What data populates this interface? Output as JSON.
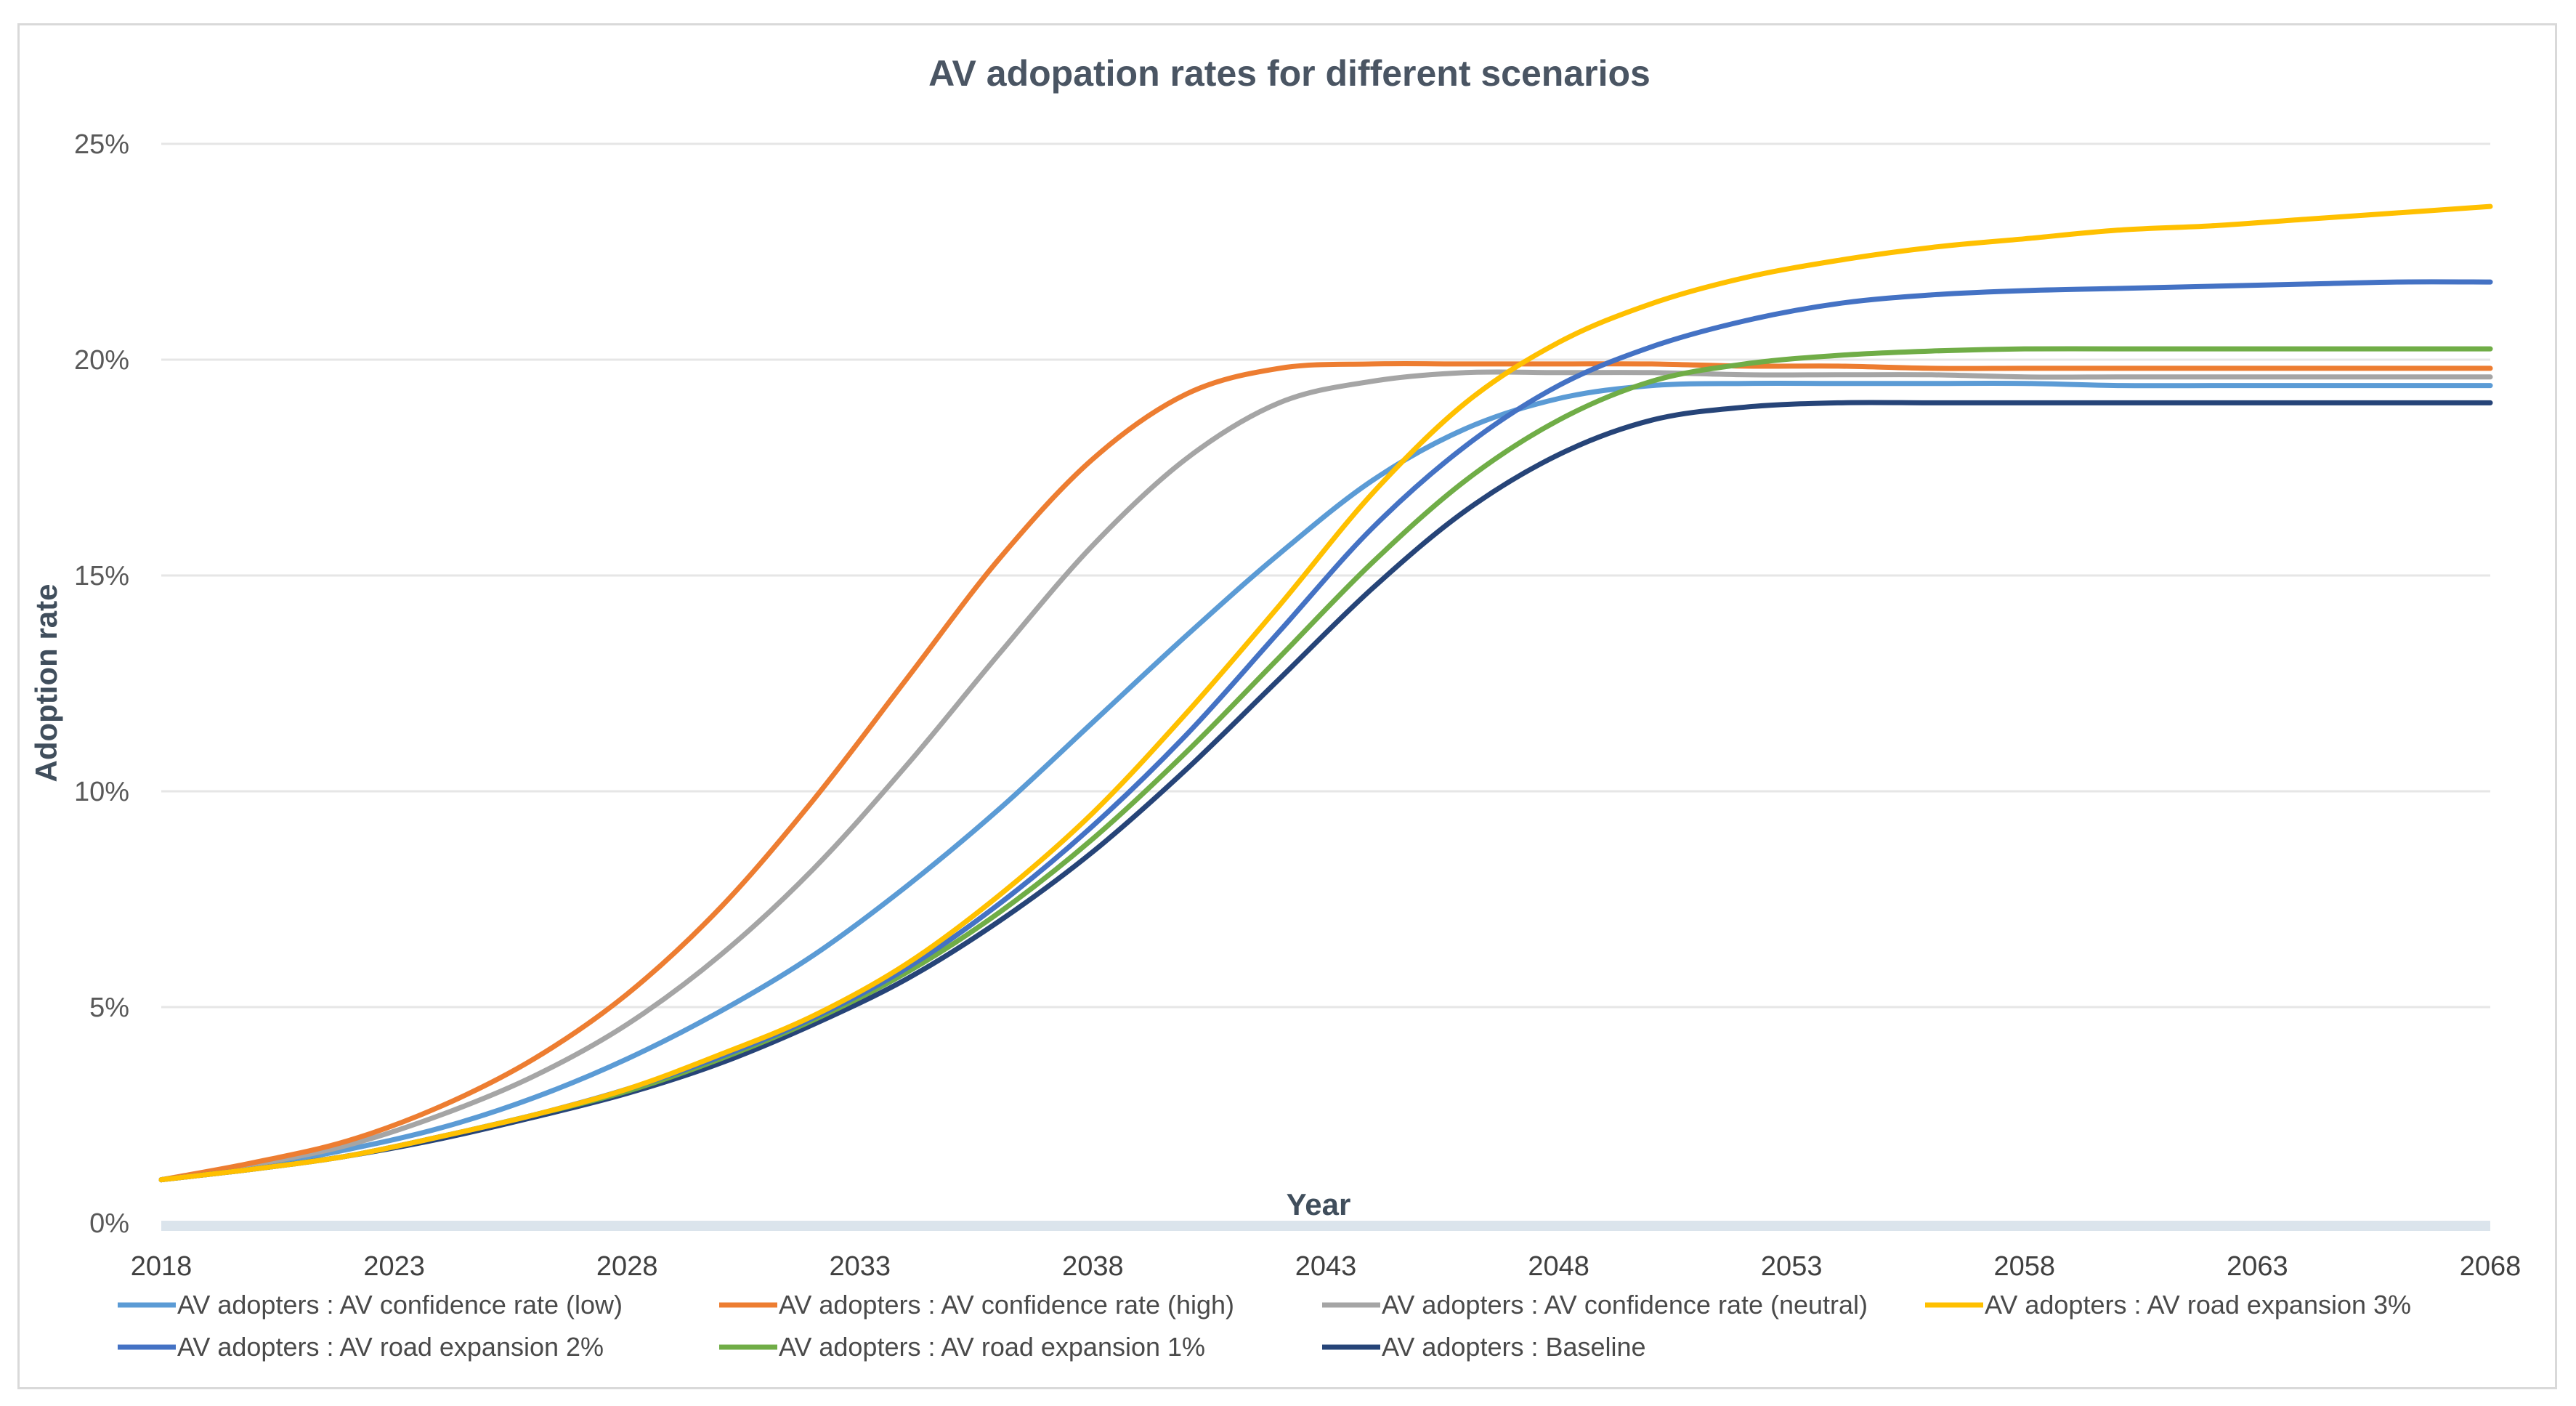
{
  "chart_data": {
    "type": "line",
    "title": "AV adopation rates for different scenarios",
    "xlabel": "Year",
    "ylabel": "Adoption rate",
    "xlim": [
      2018,
      2068
    ],
    "ylim": [
      0,
      25
    ],
    "x_ticks": [
      "2018",
      "2023",
      "2028",
      "2033",
      "2038",
      "2043",
      "2048",
      "2053",
      "2058",
      "2063",
      "2068"
    ],
    "y_ticks": [
      "0%",
      "5%",
      "10%",
      "15%",
      "20%",
      "25%"
    ],
    "grid": true,
    "legend_position": "bottom",
    "x": [
      2018,
      2020,
      2022,
      2024,
      2026,
      2028,
      2030,
      2032,
      2034,
      2036,
      2038,
      2040,
      2042,
      2044,
      2046,
      2048,
      2050,
      2052,
      2054,
      2056,
      2058,
      2060,
      2062,
      2064,
      2066,
      2068
    ],
    "series": [
      {
        "name": "AV adopters : AV confidence rate (low)",
        "color": "#5b9bd5",
        "values": [
          1.0,
          1.3,
          1.7,
          2.2,
          2.9,
          3.8,
          4.9,
          6.2,
          7.8,
          9.6,
          11.6,
          13.6,
          15.5,
          17.2,
          18.4,
          19.1,
          19.4,
          19.45,
          19.45,
          19.45,
          19.45,
          19.4,
          19.4,
          19.4,
          19.4,
          19.4
        ]
      },
      {
        "name": "AV adopters : AV confidence rate (high)",
        "color": "#ed7d31",
        "values": [
          1.0,
          1.4,
          1.9,
          2.7,
          3.8,
          5.3,
          7.3,
          9.8,
          12.6,
          15.4,
          17.7,
          19.2,
          19.8,
          19.9,
          19.9,
          19.9,
          19.9,
          19.85,
          19.85,
          19.8,
          19.8,
          19.8,
          19.8,
          19.8,
          19.8,
          19.8
        ]
      },
      {
        "name": "AV adopters : AV confidence rate (neutral)",
        "color": "#a5a5a5",
        "values": [
          1.0,
          1.35,
          1.8,
          2.5,
          3.4,
          4.6,
          6.2,
          8.2,
          10.6,
          13.2,
          15.7,
          17.7,
          19.0,
          19.5,
          19.7,
          19.7,
          19.7,
          19.65,
          19.65,
          19.65,
          19.6,
          19.6,
          19.6,
          19.6,
          19.6,
          19.6
        ]
      },
      {
        "name": "AV adopters : AV road expansion 3%",
        "color": "#ffc000",
        "values": [
          1.0,
          1.25,
          1.55,
          2.0,
          2.5,
          3.1,
          3.9,
          4.8,
          6.0,
          7.6,
          9.5,
          11.8,
          14.3,
          16.9,
          19.0,
          20.4,
          21.3,
          21.9,
          22.3,
          22.6,
          22.8,
          23.0,
          23.1,
          23.25,
          23.4,
          23.55
        ]
      },
      {
        "name": "AV adopters : AV road expansion 2%",
        "color": "#4472c4",
        "values": [
          1.0,
          1.25,
          1.55,
          2.0,
          2.5,
          3.1,
          3.85,
          4.75,
          5.9,
          7.4,
          9.2,
          11.3,
          13.7,
          16.1,
          18.0,
          19.4,
          20.3,
          20.9,
          21.3,
          21.5,
          21.6,
          21.65,
          21.7,
          21.75,
          21.8,
          21.8
        ]
      },
      {
        "name": "AV adopters : AV road expansion 1%",
        "color": "#70ad47",
        "values": [
          1.0,
          1.25,
          1.55,
          2.0,
          2.5,
          3.05,
          3.8,
          4.7,
          5.8,
          7.2,
          8.9,
          10.9,
          13.1,
          15.3,
          17.2,
          18.6,
          19.5,
          19.9,
          20.1,
          20.2,
          20.25,
          20.25,
          20.25,
          20.25,
          20.25,
          20.25
        ]
      },
      {
        "name": "AV adopters : Baseline",
        "color": "#264478",
        "values": [
          1.0,
          1.25,
          1.55,
          1.95,
          2.45,
          3.0,
          3.7,
          4.6,
          5.65,
          7.0,
          8.6,
          10.5,
          12.6,
          14.7,
          16.5,
          17.8,
          18.6,
          18.9,
          19.0,
          19.0,
          19.0,
          19.0,
          19.0,
          19.0,
          19.0,
          19.0
        ]
      }
    ]
  }
}
